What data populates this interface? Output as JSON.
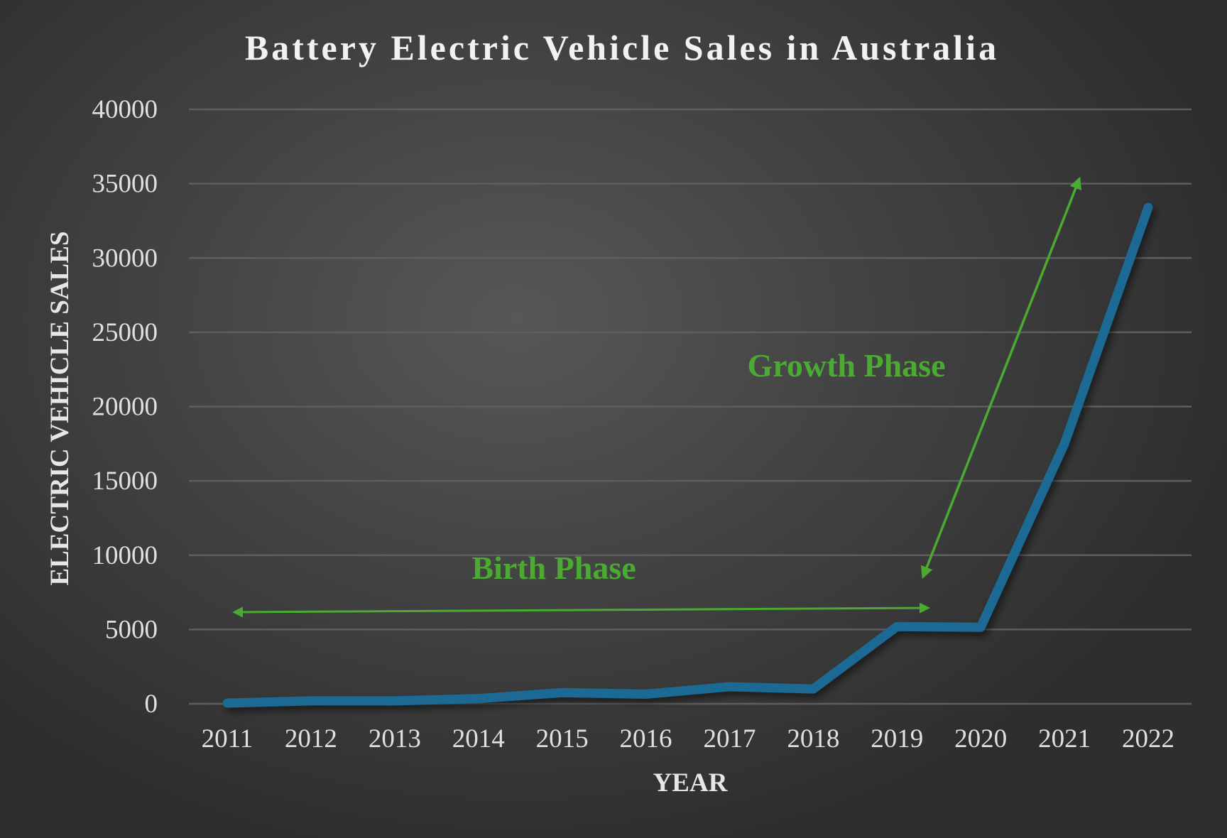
{
  "chart_data": {
    "type": "line",
    "title": "Battery Electric Vehicle Sales in Australia",
    "xlabel": "YEAR",
    "ylabel": "ELECTRIC VEHICLE SALES",
    "categories": [
      "2011",
      "2012",
      "2013",
      "2014",
      "2015",
      "2016",
      "2017",
      "2018",
      "2019",
      "2020",
      "2021",
      "2022"
    ],
    "series": [
      {
        "values": [
          50,
          200,
          200,
          350,
          750,
          650,
          1150,
          1000,
          5200,
          5150,
          17500,
          33400
        ],
        "color": "#1b6a94"
      }
    ],
    "ylim": [
      0,
      40000
    ],
    "yticks": [
      0,
      5000,
      10000,
      15000,
      20000,
      25000,
      30000,
      35000,
      40000
    ],
    "grid": true,
    "legend": "none",
    "annotations": [
      {
        "text": "Birth Phase",
        "color": "#4aaa32"
      },
      {
        "text": "Growth Phase",
        "color": "#4aaa32"
      }
    ]
  }
}
